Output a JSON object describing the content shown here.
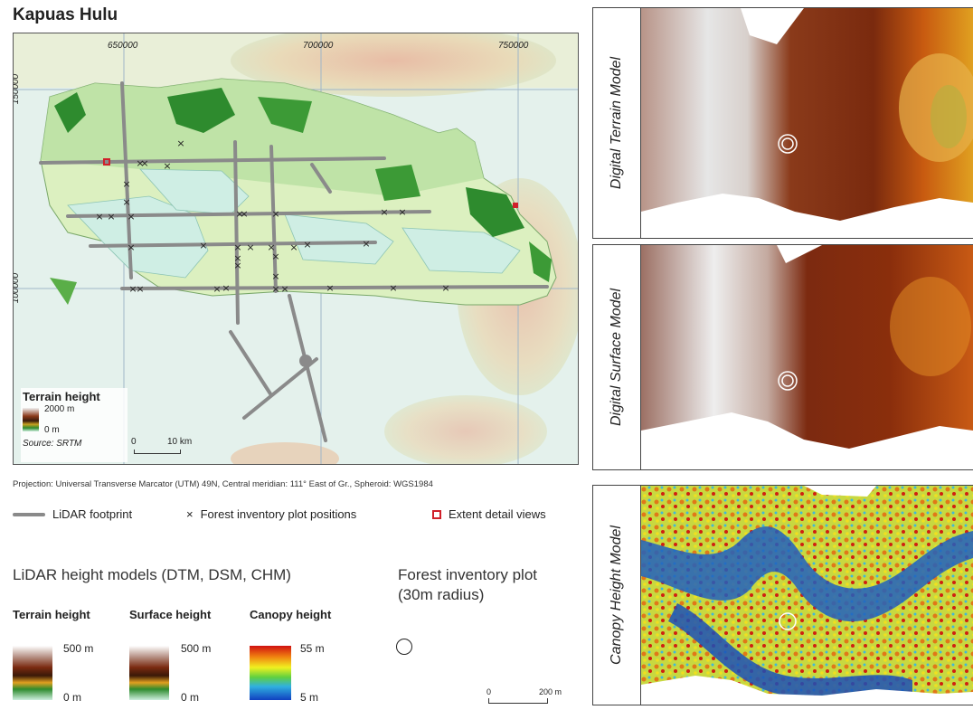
{
  "map": {
    "title": "Kapuas Hulu",
    "x_ticks": [
      "650000",
      "700000",
      "750000"
    ],
    "y_ticks": [
      "150000",
      "100000"
    ],
    "inset_legend": {
      "title": "Terrain height",
      "max": "2000 m",
      "min": "0 m",
      "source": "Source: SRTM",
      "scale_start": "0",
      "scale_end": "10 km"
    }
  },
  "projection_note": "Projection: Universal Transverse Marcator (UTM) 49N, Central meridian: 111° East of Gr., Spheroid: WGS1984",
  "legend": {
    "lidar_footprint": "LiDAR footprint",
    "plot_positions": "Forest inventory plot positions",
    "extent_detail": "Extent detail views"
  },
  "height_models": {
    "heading": "LiDAR height models (DTM, DSM, CHM)",
    "terrain": {
      "label": "Terrain height",
      "max": "500 m",
      "min": "0 m"
    },
    "surface": {
      "label": "Surface height",
      "max": "500 m",
      "min": "0 m"
    },
    "canopy": {
      "label": "Canopy height",
      "max": "55 m",
      "min": "5 m"
    }
  },
  "plot_legend": {
    "heading_line1": "Forest inventory plot",
    "heading_line2": "(30m radius)"
  },
  "detail_scale": {
    "start": "0",
    "end": "200 m"
  },
  "panels": [
    {
      "label": "Digital Terrain Model"
    },
    {
      "label": "Digital Surface Model"
    },
    {
      "label": "Canopy Height Model"
    }
  ],
  "colors": {
    "lidar": "#8a8a8a",
    "plot_marker": "#222222",
    "extent_marker": "#d0202a",
    "lowland": "#cdeede",
    "forest_green": "#2e8b2e"
  }
}
